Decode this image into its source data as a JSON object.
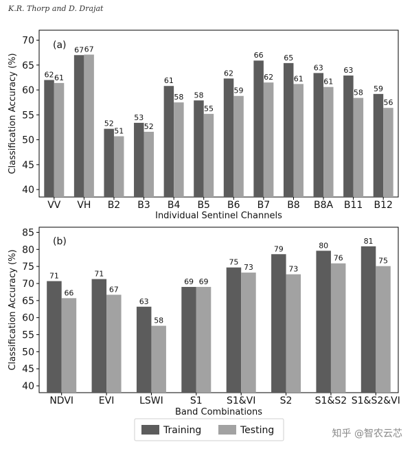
{
  "header": {
    "authors": "K.R. Thorp and D. Drajat"
  },
  "watermark": "知乎 @智农云芯",
  "colors": {
    "training": "#5c5c5c",
    "testing": "#a2a2a2",
    "axis": "#000000"
  },
  "legend": {
    "training": "Training",
    "testing": "Testing"
  },
  "chart_data": [
    {
      "type": "bar",
      "panel_label": "(a)",
      "xlabel": "Individual Sentinel Channels",
      "ylabel": "Classification Accuracy (%)",
      "ylim": [
        38.5,
        72
      ],
      "yticks": [
        40,
        45,
        50,
        55,
        60,
        65,
        70
      ],
      "categories": [
        "VV",
        "VH",
        "B2",
        "B3",
        "B4",
        "B5",
        "B6",
        "B7",
        "B8",
        "B8A",
        "B11",
        "B12"
      ],
      "series": [
        {
          "name": "Training",
          "values": [
            62.0,
            67.0,
            52.2,
            53.4,
            60.8,
            57.9,
            62.3,
            65.9,
            65.4,
            63.4,
            62.9,
            59.2
          ],
          "labels": [
            "62",
            "67",
            "52",
            "53",
            "61",
            "58",
            "62",
            "66",
            "65",
            "63",
            "63",
            "59"
          ]
        },
        {
          "name": "Testing",
          "values": [
            61.4,
            67.1,
            50.7,
            51.6,
            57.5,
            55.2,
            58.8,
            61.5,
            61.2,
            60.6,
            58.4,
            56.4
          ],
          "labels": [
            "61",
            "67",
            "51",
            "52",
            "58",
            "55",
            "59",
            "62",
            "61",
            "61",
            "58",
            "56"
          ]
        }
      ]
    },
    {
      "type": "bar",
      "panel_label": "(b)",
      "xlabel": "Band Combinations",
      "ylabel": "Classification Accuracy (%)",
      "ylim": [
        38,
        86.5
      ],
      "yticks": [
        40,
        45,
        50,
        55,
        60,
        65,
        70,
        75,
        80,
        85
      ],
      "categories": [
        "NDVI",
        "EVI",
        "LSWI",
        "S1",
        "S1&VI",
        "S2",
        "S1&S2",
        "S1&S2&VI"
      ],
      "series": [
        {
          "name": "Training",
          "values": [
            70.7,
            71.3,
            63.2,
            69.0,
            74.7,
            78.6,
            79.6,
            80.9
          ],
          "labels": [
            "71",
            "71",
            "63",
            "69",
            "75",
            "79",
            "80",
            "81"
          ]
        },
        {
          "name": "Testing",
          "values": [
            65.7,
            66.7,
            57.6,
            69.0,
            73.2,
            72.7,
            75.9,
            75.1
          ],
          "labels": [
            "66",
            "67",
            "58",
            "69",
            "73",
            "73",
            "76",
            "75"
          ]
        }
      ]
    }
  ]
}
